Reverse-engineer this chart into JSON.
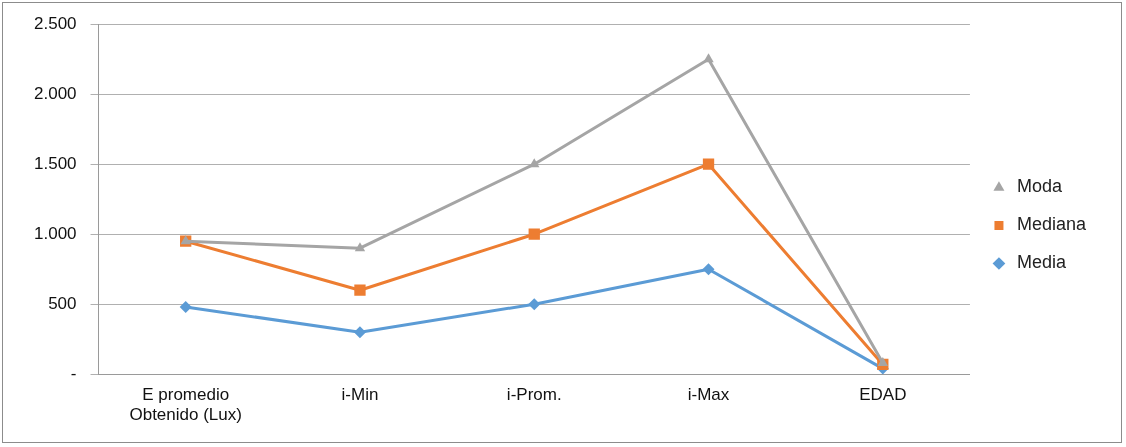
{
  "chart_data": {
    "type": "line",
    "categories": [
      "E promedio Obtenido (Lux)",
      "i-Min",
      "i-Prom.",
      "i-Max",
      "EDAD"
    ],
    "series": [
      {
        "name": "Moda",
        "color": "#a5a5a5",
        "marker": "triangle",
        "values": [
          950,
          900,
          1500,
          2250,
          80
        ]
      },
      {
        "name": "Mediana",
        "color": "#ed7d31",
        "marker": "square",
        "values": [
          950,
          600,
          1000,
          1500,
          70
        ]
      },
      {
        "name": "Media",
        "color": "#5b9bd5",
        "marker": "diamond",
        "values": [
          480,
          300,
          500,
          750,
          40
        ]
      }
    ],
    "ylim": [
      0,
      2500
    ],
    "yticks": [
      {
        "value": 0,
        "label": "-"
      },
      {
        "value": 500,
        "label": "500"
      },
      {
        "value": 1000,
        "label": "1.000"
      },
      {
        "value": 1500,
        "label": "1.500"
      },
      {
        "value": 2000,
        "label": "2.000"
      },
      {
        "value": 2500,
        "label": "2.500"
      }
    ],
    "grid": "y",
    "legend": "right",
    "line_style": "solid"
  }
}
